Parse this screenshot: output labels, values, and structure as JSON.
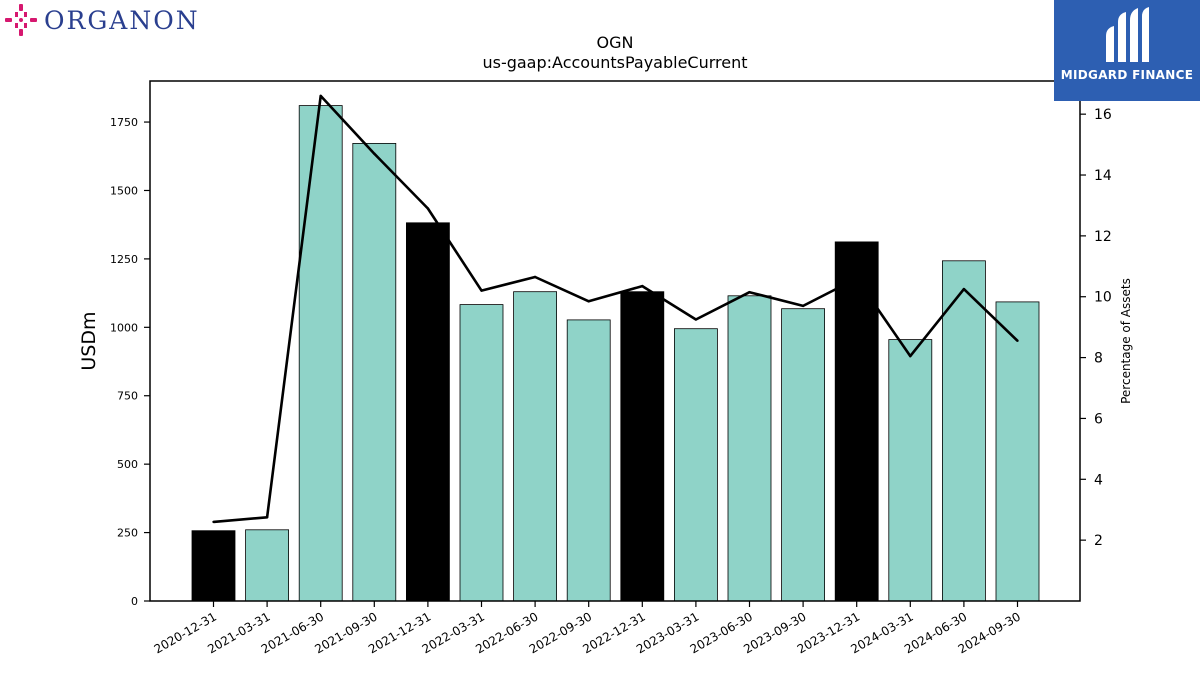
{
  "brand_left": {
    "name": "ORGANON"
  },
  "brand_right": {
    "name": "MIDGARD FINANCE"
  },
  "chart_data": {
    "type": "bar",
    "title": "OGN",
    "subtitle": "us-gaap:AccountsPayableCurrent",
    "ylabel": "USDm",
    "y2label": "Percentage of Assets",
    "ylim": [
      0,
      1900
    ],
    "y2lim": [
      0,
      17.09
    ],
    "yticks": [
      0,
      250,
      500,
      750,
      1000,
      1250,
      1500,
      1750
    ],
    "y2ticks": [
      2,
      4,
      6,
      8,
      10,
      12,
      14,
      16
    ],
    "categories": [
      "2020-12-31",
      "2021-03-31",
      "2021-06-30",
      "2021-09-30",
      "2021-12-31",
      "2022-03-31",
      "2022-06-30",
      "2022-09-30",
      "2022-12-31",
      "2023-03-31",
      "2023-06-30",
      "2023-09-30",
      "2023-12-31",
      "2024-03-31",
      "2024-06-30",
      "2024-09-30"
    ],
    "series": [
      {
        "type": "bar",
        "values": [
          257,
          260,
          1810,
          1672,
          1382,
          1083,
          1130,
          1027,
          1130,
          995,
          1115,
          1068,
          1312,
          955,
          1243,
          1093
        ]
      },
      {
        "type": "line",
        "axis": "right",
        "values": [
          2.6,
          2.75,
          16.6,
          14.7,
          12.9,
          10.2,
          10.65,
          9.85,
          10.35,
          9.25,
          10.15,
          9.7,
          10.6,
          8.05,
          10.25,
          8.55
        ]
      }
    ],
    "bar_colors": [
      "#000000",
      "#8fd3c8",
      "#8fd3c8",
      "#8fd3c8",
      "#000000",
      "#8fd3c8",
      "#8fd3c8",
      "#8fd3c8",
      "#000000",
      "#8fd3c8",
      "#8fd3c8",
      "#8fd3c8",
      "#000000",
      "#8fd3c8",
      "#8fd3c8",
      "#8fd3c8"
    ],
    "line_color": "#000000",
    "grid": false,
    "legend": "none"
  }
}
